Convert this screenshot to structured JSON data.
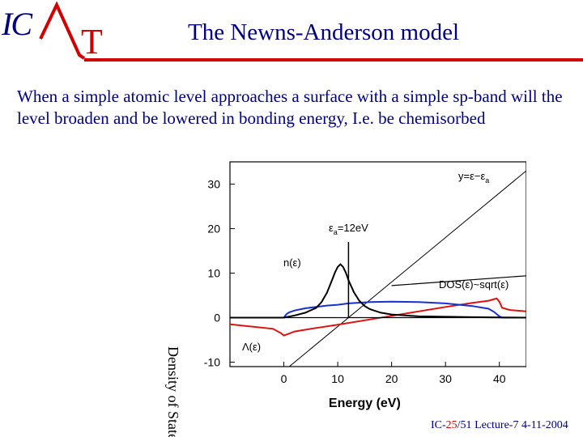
{
  "logo": {
    "left": "IC",
    "right": "T"
  },
  "slide": {
    "title": "The Newns-Anderson model",
    "intro": "When a simple atomic level approaches a surface with a simple sp-band will the level broaden and be lowered in bonding energy, I.e. be chemisorbed"
  },
  "footer": {
    "prefix": "IC-",
    "current": "25",
    "total": "/51",
    "lecture": " Lecture-7 4-11-2004"
  },
  "colors": {
    "navy": "#000080",
    "red": "#d00000",
    "blue_curve": "#1a2fd0",
    "red_curve": "#e01010"
  },
  "chart_data": {
    "type": "line",
    "xlabel": "Energy (eV)",
    "ylabel": "Density of States",
    "xlim": [
      -10,
      45
    ],
    "ylim": [
      -11,
      35
    ],
    "x_ticks": [
      0,
      10,
      20,
      30,
      40
    ],
    "y_ticks": [
      -10,
      0,
      10,
      20,
      30
    ],
    "annotations": {
      "line_label": "y=ε−ε",
      "line_label_sub": "a",
      "level_label": "ε",
      "level_label_sub": "a",
      "level_label_rest": "=12eV",
      "n_label": "n(ε)",
      "dos_label": "DOS(ε)~sqrt(ε)",
      "lambda_label": "Λ(ε)"
    },
    "series": [
      {
        "key": "line",
        "color": "#000000",
        "x": [
          -10,
          45
        ],
        "y": [
          -22,
          33
        ]
      },
      {
        "key": "n",
        "color": "#000000",
        "x": [
          -10,
          0,
          2,
          4,
          6,
          7,
          8,
          9,
          9.5,
          10,
          10.5,
          11,
          11.5,
          12,
          13,
          14,
          15,
          16,
          18,
          20,
          25,
          30,
          35,
          40,
          45
        ],
        "y": [
          0,
          0,
          0.5,
          1.1,
          2.2,
          3.5,
          5.6,
          8.6,
          10.2,
          11.4,
          12,
          11.4,
          10.1,
          8.4,
          5.7,
          3.8,
          2.6,
          1.9,
          1.1,
          0.7,
          0.3,
          0.2,
          0.1,
          0.05,
          0
        ]
      },
      {
        "key": "dos",
        "color": "#1a2fd0",
        "x": [
          -10,
          0,
          0.5,
          1,
          2,
          4,
          6,
          8,
          10,
          12,
          16,
          20,
          25,
          30,
          35,
          38,
          39,
          40,
          40.5,
          45
        ],
        "y": [
          0,
          0,
          0.8,
          1.2,
          1.6,
          2.1,
          2.4,
          2.7,
          2.9,
          3.2,
          3.5,
          3.6,
          3.5,
          3.2,
          2.6,
          2,
          1.3,
          0.3,
          0,
          0
        ]
      },
      {
        "key": "lambda",
        "color": "#e01010",
        "x": [
          -10,
          -2,
          -0.5,
          0,
          0.5,
          2,
          5,
          10,
          15,
          20,
          25,
          30,
          35,
          38,
          39.5,
          40,
          40.5,
          42,
          45
        ],
        "y": [
          -1.5,
          -2.5,
          -3.5,
          -4,
          -3.8,
          -3.1,
          -2.5,
          -1.6,
          -0.6,
          0.4,
          1.4,
          2.4,
          3.3,
          3.8,
          4.3,
          3.6,
          2.2,
          1.7,
          1.4
        ]
      },
      {
        "key": "dos_asymptote",
        "color": "#000000",
        "x": [
          20,
          45
        ],
        "y": [
          7.2,
          9.4
        ]
      }
    ],
    "vertical_line": {
      "x": 12,
      "y_from": 0,
      "y_to": 17
    },
    "zero_line": 0
  }
}
